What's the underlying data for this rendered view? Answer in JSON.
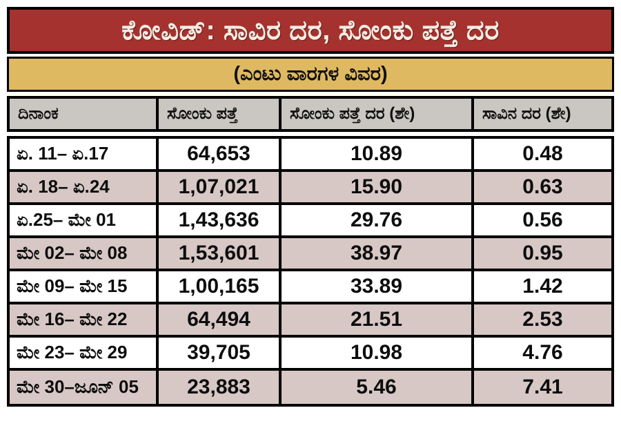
{
  "title": "ಕೋವಿಡ್: ಸಾವಿರ ದರ, ಸೋಂಕು ಪತ್ತೆ ದರ",
  "subtitle": "(ಎಂಟು ವಾರಗಳ ವಿವರ)",
  "colors": {
    "title_bg": "#A5322F",
    "title_text": "#F2EDE3",
    "subtitle_bg": "#DFB962",
    "header_bg": "#CAC6C2",
    "row_bg": "#FFFFFF",
    "row_alt_bg": "#D7C8C5",
    "border": "#000000"
  },
  "table": {
    "headers": [
      "ದಿನಾಂಕ",
      "ಸೋಂಕು ಪತ್ತೆ",
      "ಸೋಂಕು ಪತ್ತೆ ದರ (ಶೇ)",
      "ಸಾವಿನ ದರ (ಶೇ)"
    ],
    "rows": [
      [
        "ಏ. 11– ಏ.17",
        "64,653",
        "10.89",
        "0.48"
      ],
      [
        "ಏ. 18– ಏ.24",
        "1,07,021",
        "15.90",
        "0.63"
      ],
      [
        "ಏ.25– ಮೇ 01",
        "1,43,636",
        "29.76",
        "0.56"
      ],
      [
        "ಮೇ 02– ಮೇ 08",
        "1,53,601",
        "38.97",
        "0.95"
      ],
      [
        "ಮೇ 09– ಮೇ 15",
        "1,00,165",
        "33.89",
        "1.42"
      ],
      [
        "ಮೇ 16– ಮೇ 22",
        "64,494",
        "21.51",
        "2.53"
      ],
      [
        "ಮೇ 23– ಮೇ 29",
        "39,705",
        "10.98",
        "4.76"
      ],
      [
        "ಮೇ 30–ಜೂನ್ 05",
        "23,883",
        "5.46",
        "7.41"
      ]
    ]
  },
  "chart_data": {
    "type": "table",
    "title": "ಕೋವಿಡ್: ಸಾವಿರ ದರ, ಸೋಂಕು ಪತ್ತೆ ದರ",
    "subtitle": "(ಎಂಟು ವಾರಗಳ ವಿವರ)",
    "columns": [
      "ದಿನಾಂಕ",
      "ಸೋಂಕು ಪತ್ತೆ",
      "ಸೋಂಕು ಪತ್ತೆ ದರ (ಶೇ)",
      "ಸಾವಿನ ದರ (ಶೇ)"
    ],
    "rows": [
      {
        "week": "ಏ. 11– ಏ.17",
        "cases_detected": 64653,
        "detection_rate_pct": 10.89,
        "death_rate_pct": 0.48
      },
      {
        "week": "ಏ. 18– ಏ.24",
        "cases_detected": 107021,
        "detection_rate_pct": 15.9,
        "death_rate_pct": 0.63
      },
      {
        "week": "ಏ.25– ಮೇ 01",
        "cases_detected": 143636,
        "detection_rate_pct": 29.76,
        "death_rate_pct": 0.56
      },
      {
        "week": "ಮೇ 02– ಮೇ 08",
        "cases_detected": 153601,
        "detection_rate_pct": 38.97,
        "death_rate_pct": 0.95
      },
      {
        "week": "ಮೇ 09– ಮೇ 15",
        "cases_detected": 100165,
        "detection_rate_pct": 33.89,
        "death_rate_pct": 1.42
      },
      {
        "week": "ಮೇ 16– ಮೇ 22",
        "cases_detected": 64494,
        "detection_rate_pct": 21.51,
        "death_rate_pct": 2.53
      },
      {
        "week": "ಮೇ 23– ಮೇ 29",
        "cases_detected": 39705,
        "detection_rate_pct": 10.98,
        "death_rate_pct": 4.76
      },
      {
        "week": "ಮೇ 30–ಜೂನ್ 05",
        "cases_detected": 23883,
        "detection_rate_pct": 5.46,
        "death_rate_pct": 7.41
      }
    ],
    "notes": "Alternating white / mauve row shading; black grid borders; Indian digit grouping in counts"
  }
}
